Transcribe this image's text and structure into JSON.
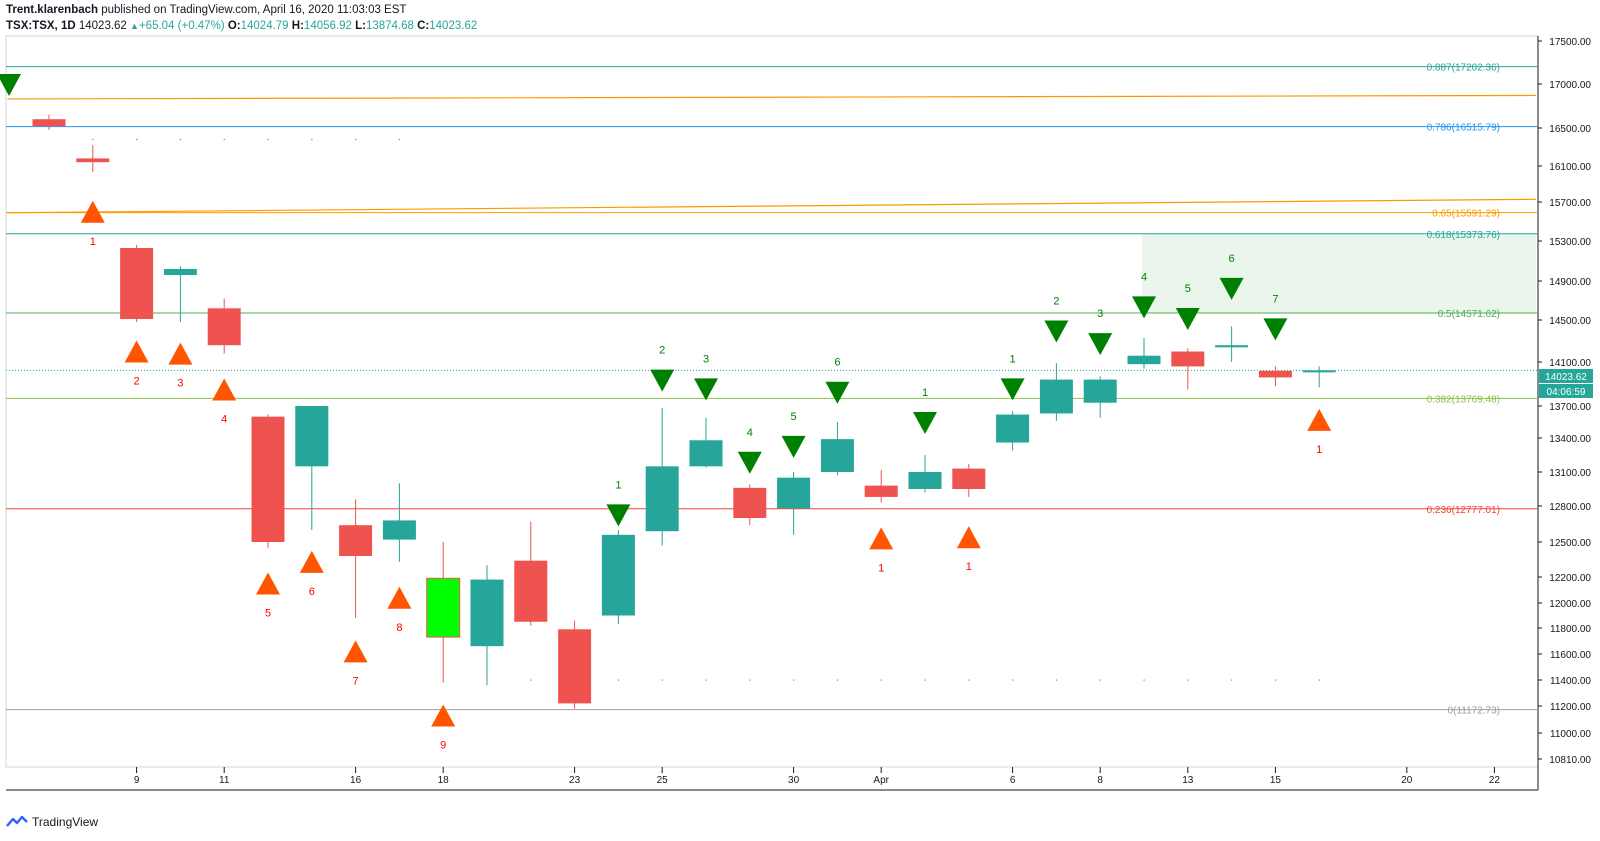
{
  "header": {
    "publisher": "Trent.klarenbach",
    "published_text": "published on TradingView.com, April 16, 2020 11:03:03 EST",
    "symbol": "TSX:TSX, 1D",
    "last": "14023.62",
    "change": "+65.04 (+0.47%)",
    "o_label": "O:",
    "o": "14024.79",
    "h_label": "H:",
    "h": "14056.92",
    "l_label": "L:",
    "l": "13874.68",
    "c_label": "C:",
    "c": "14023.62"
  },
  "footer": {
    "brand": "TradingView"
  },
  "colors": {
    "up": "#26a69a",
    "down": "#ef5350",
    "bright_up": "#00ff00",
    "sell_marker": "#008000",
    "buy_marker": "#ff5500",
    "fib_0887": "#26a69a",
    "fib_0786": "#2196f3",
    "fib_065": "#ff9800",
    "fib_0618": "#26a69a",
    "fib_05": "#4caf50",
    "fib_0382": "#8bc34a",
    "fib_0236": "#f44336",
    "fib_0": "#9e9e9e",
    "zone": "#e8f5e9"
  },
  "price_badges": {
    "last": "14023.62",
    "timer": "04:06:59"
  },
  "chart_data": {
    "type": "candlestick",
    "y_axis": {
      "ylim": [
        10650,
        17550
      ],
      "ticks": [
        10810,
        11000,
        11200,
        11400,
        11600,
        11800,
        12000,
        12200,
        12500,
        12800,
        13100,
        13400,
        13700,
        14100,
        14500,
        14900,
        15300,
        15700,
        16100,
        16500,
        17000,
        17500
      ]
    },
    "x_axis": {
      "tick_labels": [
        {
          "label": "9",
          "x": 2
        },
        {
          "label": "11",
          "x": 4
        },
        {
          "label": "16",
          "x": 7
        },
        {
          "label": "18",
          "x": 9
        },
        {
          "label": "23",
          "x": 12
        },
        {
          "label": "25",
          "x": 14
        },
        {
          "label": "30",
          "x": 17
        },
        {
          "label": "Apr",
          "x": 19
        },
        {
          "label": "6",
          "x": 22
        },
        {
          "label": "8",
          "x": 24
        },
        {
          "label": "13",
          "x": 26
        },
        {
          "label": "15",
          "x": 28
        },
        {
          "label": "20",
          "x": 31
        },
        {
          "label": "22",
          "x": 33
        }
      ]
    },
    "candles": [
      {
        "x": 0,
        "o": 16600,
        "h": 16650,
        "l": 16480,
        "c": 16520,
        "color": "down"
      },
      {
        "x": 1,
        "o": 16180,
        "h": 16320,
        "l": 16030,
        "c": 16140,
        "color": "down"
      },
      {
        "x": 2,
        "o": 15230,
        "h": 15260,
        "l": 14480,
        "c": 14510,
        "color": "down"
      },
      {
        "x": 3,
        "o": 14960,
        "h": 15050,
        "l": 14480,
        "c": 15020,
        "color": "up"
      },
      {
        "x": 4,
        "o": 14620,
        "h": 14720,
        "l": 14180,
        "c": 14260,
        "color": "down"
      },
      {
        "x": 5,
        "o": 13600,
        "h": 13620,
        "l": 12450,
        "c": 12500,
        "color": "down"
      },
      {
        "x": 6,
        "o": 13150,
        "h": 13700,
        "l": 12600,
        "c": 13700,
        "color": "up"
      },
      {
        "x": 7,
        "o": 12640,
        "h": 12860,
        "l": 11880,
        "c": 12380,
        "color": "down"
      },
      {
        "x": 8,
        "o": 12520,
        "h": 13000,
        "l": 12330,
        "c": 12680,
        "color": "up"
      },
      {
        "x": 9,
        "o": 11730,
        "h": 12500,
        "l": 11380,
        "c": 12190,
        "color": "bright_up"
      },
      {
        "x": 10,
        "o": 11660,
        "h": 12300,
        "l": 11360,
        "c": 12180,
        "color": "up"
      },
      {
        "x": 11,
        "o": 12340,
        "h": 12670,
        "l": 11820,
        "c": 11850,
        "color": "down"
      },
      {
        "x": 12,
        "o": 11790,
        "h": 11860,
        "l": 11180,
        "c": 11220,
        "color": "down"
      },
      {
        "x": 13,
        "o": 11900,
        "h": 12600,
        "l": 11830,
        "c": 12560,
        "color": "up"
      },
      {
        "x": 14,
        "o": 12590,
        "h": 13680,
        "l": 12470,
        "c": 13150,
        "color": "up"
      },
      {
        "x": 15,
        "o": 13150,
        "h": 13590,
        "l": 13140,
        "c": 13380,
        "color": "up"
      },
      {
        "x": 16,
        "o": 12960,
        "h": 12990,
        "l": 12640,
        "c": 12700,
        "color": "down"
      },
      {
        "x": 17,
        "o": 12780,
        "h": 13100,
        "l": 12560,
        "c": 13050,
        "color": "up"
      },
      {
        "x": 18,
        "o": 13100,
        "h": 13550,
        "l": 13070,
        "c": 13390,
        "color": "up"
      },
      {
        "x": 19,
        "o": 12980,
        "h": 13120,
        "l": 12830,
        "c": 12880,
        "color": "down"
      },
      {
        "x": 20,
        "o": 12950,
        "h": 13250,
        "l": 12920,
        "c": 13100,
        "color": "up"
      },
      {
        "x": 21,
        "o": 13130,
        "h": 13170,
        "l": 12880,
        "c": 12950,
        "color": "down"
      },
      {
        "x": 22,
        "o": 13360,
        "h": 13650,
        "l": 13290,
        "c": 13620,
        "color": "up"
      },
      {
        "x": 23,
        "o": 13630,
        "h": 14090,
        "l": 13560,
        "c": 13940,
        "color": "up"
      },
      {
        "x": 24,
        "o": 13730,
        "h": 13970,
        "l": 13590,
        "c": 13940,
        "color": "up"
      },
      {
        "x": 25,
        "o": 14080,
        "h": 14330,
        "l": 14040,
        "c": 14160,
        "color": "up"
      },
      {
        "x": 26,
        "o": 14200,
        "h": 14230,
        "l": 13850,
        "c": 14060,
        "color": "down"
      },
      {
        "x": 27,
        "o": 14240,
        "h": 14440,
        "l": 14100,
        "c": 14260,
        "color": "up"
      },
      {
        "x": 28,
        "o": 14020,
        "h": 14060,
        "l": 13880,
        "c": 13960,
        "color": "down"
      },
      {
        "x": 29,
        "o": 14020,
        "h": 14060,
        "l": 13870,
        "c": 14024,
        "color": "up"
      }
    ],
    "fib_levels": [
      {
        "ratio": 0.887,
        "value": 17202.36,
        "label": "0.887(17202.36)",
        "color_key": "fib_0887"
      },
      {
        "ratio": 0.786,
        "value": 16515.79,
        "label": "0.786(16515.79)",
        "color_key": "fib_0786"
      },
      {
        "ratio": 0.65,
        "value": 15591.29,
        "label": "0.65(15591.29)",
        "color_key": "fib_065"
      },
      {
        "ratio": 0.618,
        "value": 15373.76,
        "label": "0.618(15373.76)",
        "color_key": "fib_0618"
      },
      {
        "ratio": 0.5,
        "value": 14571.62,
        "label": "0.5(14571.62)",
        "color_key": "fib_05"
      },
      {
        "ratio": 0.382,
        "value": 13769.48,
        "label": "0.382(13769.48)",
        "color_key": "fib_0382"
      },
      {
        "ratio": 0.236,
        "value": 12777.01,
        "label": "0.236(12777.01)",
        "color_key": "fib_0236"
      },
      {
        "ratio": 0,
        "value": 11172.73,
        "label": "0(11172.73)",
        "color_key": "fib_0"
      }
    ],
    "trend_lines": [
      {
        "x1": -0.95,
        "y1": 16830,
        "x2": 33.95,
        "y2": 16870
      },
      {
        "x1": -0.95,
        "y1": 15590,
        "x2": 33.95,
        "y2": 15730
      }
    ],
    "zone": {
      "x1": 24.95,
      "x2": 33.95,
      "y1": 14571.62,
      "y2": 15373.76
    },
    "last_price": 14023.62,
    "sell_markers": [
      {
        "x": -0.9,
        "y": 17000,
        "label": ""
      },
      {
        "x": 13,
        "y": 12730,
        "label": "1"
      },
      {
        "x": 14,
        "y": 13940,
        "label": "2"
      },
      {
        "x": 15,
        "y": 13860,
        "label": "3"
      },
      {
        "x": 16,
        "y": 13190,
        "label": "4"
      },
      {
        "x": 17,
        "y": 13330,
        "label": "5"
      },
      {
        "x": 18,
        "y": 13830,
        "label": "6"
      },
      {
        "x": 20,
        "y": 13550,
        "label": "1"
      },
      {
        "x": 22,
        "y": 13860,
        "label": "1"
      },
      {
        "x": 23,
        "y": 14400,
        "label": "2"
      },
      {
        "x": 24,
        "y": 14280,
        "label": "3"
      },
      {
        "x": 25,
        "y": 14640,
        "label": "4"
      },
      {
        "x": 26,
        "y": 14520,
        "label": "5"
      },
      {
        "x": 27,
        "y": 14830,
        "label": "6"
      },
      {
        "x": 28,
        "y": 14420,
        "label": "7"
      }
    ],
    "buy_markers": [
      {
        "x": 1,
        "y": 15600,
        "label": "1"
      },
      {
        "x": 2,
        "y": 14200,
        "label": "2"
      },
      {
        "x": 3,
        "y": 14180,
        "label": "3"
      },
      {
        "x": 4,
        "y": 13850,
        "label": "4"
      },
      {
        "x": 5,
        "y": 12150,
        "label": "5"
      },
      {
        "x": 6,
        "y": 12330,
        "label": "6"
      },
      {
        "x": 7,
        "y": 11620,
        "label": "7"
      },
      {
        "x": 8,
        "y": 12040,
        "label": "8"
      },
      {
        "x": 9,
        "y": 11130,
        "label": "9"
      },
      {
        "x": 19,
        "y": 12530,
        "label": "1"
      },
      {
        "x": 21,
        "y": 12540,
        "label": "1"
      },
      {
        "x": 29,
        "y": 13570,
        "label": "1"
      }
    ],
    "dot_rows": [
      {
        "y": 16380,
        "x_from": 1,
        "x_to": 8
      },
      {
        "y": 11400,
        "x_from": 11,
        "x_to": 29
      }
    ]
  }
}
